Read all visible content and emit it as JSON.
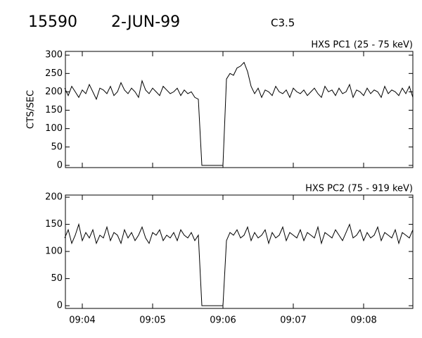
{
  "header": {
    "number": "15590",
    "date": "2-JUN-99",
    "class": "C3.5"
  },
  "chart_data": [
    {
      "type": "line",
      "title": "HXS PC1 (25 - 75 keV)",
      "y_label": "CTS/SEC",
      "color": "#000000",
      "xlim": [
        543.76,
        548.7
      ],
      "ylim": [
        -6,
        310
      ],
      "yticks": [
        0,
        50,
        100,
        150,
        200,
        250,
        300
      ],
      "x": [
        543.75,
        543.8,
        543.85,
        543.9,
        543.95,
        544,
        544.05,
        544.1,
        544.15,
        544.2,
        544.25,
        544.3,
        544.35,
        544.4,
        544.45,
        544.5,
        544.55,
        544.6,
        544.65,
        544.7,
        544.75,
        544.8,
        544.85,
        544.9,
        544.95,
        545,
        545.05,
        545.1,
        545.15,
        545.2,
        545.25,
        545.3,
        545.35,
        545.4,
        545.45,
        545.5,
        545.55,
        545.6,
        545.65,
        545.7,
        545.75,
        545.8,
        545.85,
        545.9,
        545.95,
        546,
        546.05,
        546.1,
        546.15,
        546.2,
        546.25,
        546.3,
        546.35,
        546.4,
        546.45,
        546.5,
        546.55,
        546.6,
        546.65,
        546.7,
        546.75,
        546.8,
        546.85,
        546.9,
        546.95,
        547,
        547.05,
        547.1,
        547.15,
        547.2,
        547.25,
        547.3,
        547.35,
        547.4,
        547.45,
        547.5,
        547.55,
        547.6,
        547.65,
        547.7,
        547.75,
        547.8,
        547.85,
        547.9,
        547.95,
        548,
        548.05,
        548.1,
        548.15,
        548.2,
        548.25,
        548.3,
        548.35,
        548.4,
        548.45,
        548.5,
        548.55,
        548.6,
        548.65,
        548.7
      ],
      "values": [
        210,
        190,
        215,
        200,
        185,
        205,
        195,
        220,
        200,
        180,
        210,
        205,
        195,
        215,
        190,
        200,
        225,
        205,
        195,
        210,
        200,
        185,
        230,
        205,
        195,
        210,
        200,
        190,
        215,
        205,
        195,
        200,
        210,
        190,
        205,
        195,
        200,
        185,
        180,
        0,
        0,
        0,
        0,
        0,
        0,
        0,
        235,
        250,
        245,
        265,
        270,
        280,
        255,
        215,
        195,
        210,
        185,
        205,
        200,
        190,
        215,
        200,
        195,
        205,
        185,
        210,
        200,
        195,
        205,
        190,
        200,
        210,
        195,
        185,
        215,
        200,
        205,
        190,
        210,
        195,
        200,
        220,
        185,
        205,
        200,
        190,
        210,
        195,
        205,
        200,
        185,
        215,
        195,
        205,
        200,
        190,
        210,
        195,
        215,
        185
      ]
    },
    {
      "type": "line",
      "title": "HXS PC2 (75 - 919 keV)",
      "color": "#000000",
      "xlim": [
        543.76,
        548.7
      ],
      "ylim": [
        -5,
        204
      ],
      "yticks": [
        0,
        50,
        100,
        150,
        200
      ],
      "xticks": [
        {
          "value": 544,
          "label": "09:04"
        },
        {
          "value": 545,
          "label": "09:05"
        },
        {
          "value": 546,
          "label": "09:06"
        },
        {
          "value": 547,
          "label": "09:07"
        },
        {
          "value": 548,
          "label": "09:08"
        }
      ],
      "x": [
        543.75,
        543.8,
        543.85,
        543.9,
        543.95,
        544,
        544.05,
        544.1,
        544.15,
        544.2,
        544.25,
        544.3,
        544.35,
        544.4,
        544.45,
        544.5,
        544.55,
        544.6,
        544.65,
        544.7,
        544.75,
        544.8,
        544.85,
        544.9,
        544.95,
        545,
        545.05,
        545.1,
        545.15,
        545.2,
        545.25,
        545.3,
        545.35,
        545.4,
        545.45,
        545.5,
        545.55,
        545.6,
        545.65,
        545.7,
        545.75,
        545.8,
        545.85,
        545.9,
        545.95,
        546,
        546.05,
        546.1,
        546.15,
        546.2,
        546.25,
        546.3,
        546.35,
        546.4,
        546.45,
        546.5,
        546.55,
        546.6,
        546.65,
        546.7,
        546.75,
        546.8,
        546.85,
        546.9,
        546.95,
        547,
        547.05,
        547.1,
        547.15,
        547.2,
        547.25,
        547.3,
        547.35,
        547.4,
        547.45,
        547.5,
        547.55,
        547.6,
        547.65,
        547.7,
        547.75,
        547.8,
        547.85,
        547.9,
        547.95,
        548,
        548.05,
        548.1,
        548.15,
        548.2,
        548.25,
        548.3,
        548.35,
        548.4,
        548.45,
        548.5,
        548.55,
        548.6,
        548.65,
        548.7
      ],
      "values": [
        125,
        140,
        115,
        130,
        150,
        120,
        135,
        125,
        140,
        115,
        130,
        125,
        145,
        120,
        135,
        130,
        115,
        140,
        125,
        135,
        120,
        130,
        145,
        125,
        115,
        135,
        130,
        140,
        120,
        130,
        125,
        135,
        120,
        140,
        130,
        125,
        135,
        120,
        130,
        0,
        0,
        0,
        0,
        0,
        0,
        0,
        120,
        135,
        130,
        140,
        125,
        130,
        145,
        120,
        135,
        125,
        130,
        140,
        115,
        135,
        125,
        130,
        145,
        120,
        135,
        130,
        125,
        140,
        120,
        135,
        130,
        125,
        145,
        115,
        135,
        130,
        125,
        140,
        130,
        120,
        135,
        150,
        125,
        130,
        140,
        120,
        135,
        125,
        130,
        145,
        120,
        135,
        130,
        125,
        140,
        115,
        135,
        130,
        125,
        140
      ]
    }
  ]
}
